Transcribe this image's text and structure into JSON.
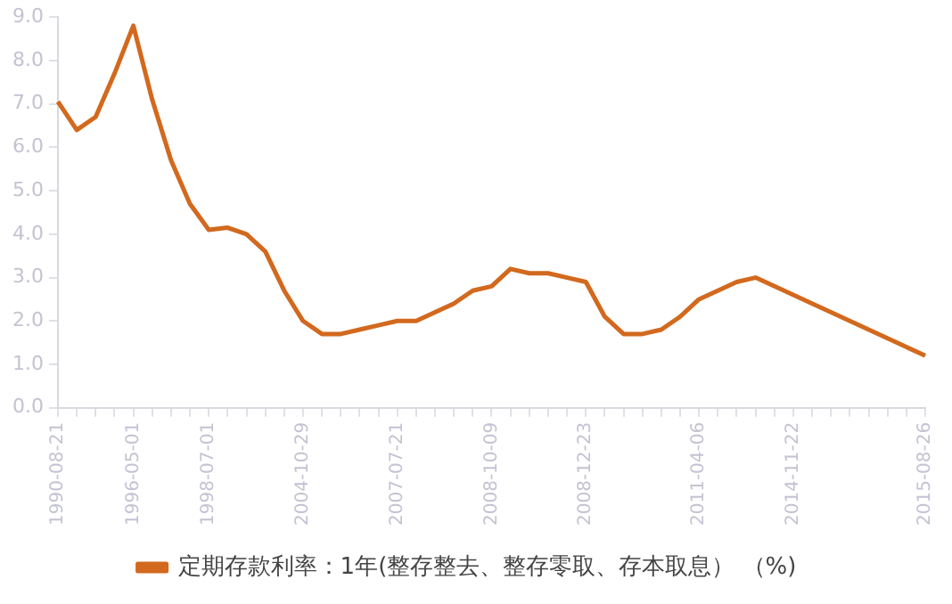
{
  "chart_data": {
    "type": "line",
    "categories": [
      "1990-08-21",
      null,
      null,
      null,
      "1996-05-01",
      null,
      null,
      null,
      "1998-07-01",
      null,
      null,
      null,
      null,
      "2004-10-29",
      null,
      null,
      null,
      null,
      "2007-07-21",
      null,
      null,
      null,
      null,
      "2008-10-09",
      null,
      null,
      null,
      null,
      "2008-12-23",
      null,
      null,
      null,
      null,
      null,
      "2011-04-06",
      null,
      null,
      null,
      null,
      "2014-11-22",
      null,
      null,
      null,
      null,
      null,
      null,
      "2015-08-26"
    ],
    "series": [
      {
        "name": "定期存款利率：1年(整存整去、整存零取、存本取息） （%)",
        "color": "#d2691e",
        "values": [
          7.05,
          6.4,
          6.7,
          7.7,
          8.8,
          7.1,
          5.7,
          4.7,
          4.1,
          4.15,
          4.0,
          3.6,
          2.7,
          2.0,
          1.7,
          1.7,
          1.8,
          1.9,
          2.0,
          2.0,
          2.2,
          2.4,
          2.7,
          2.8,
          3.2,
          3.1,
          3.1,
          3.0,
          2.9,
          2.1,
          1.7,
          1.7,
          1.8,
          2.1,
          2.5,
          2.7,
          2.9,
          3.0,
          2.8,
          2.6,
          2.4,
          2.2,
          2.0,
          1.8,
          1.6,
          1.4,
          1.2
        ]
      }
    ],
    "ylim": [
      0,
      9
    ],
    "yticks": [
      {
        "value": 0,
        "label": "0.0"
      },
      {
        "value": 1,
        "label": "1.0"
      },
      {
        "value": 2,
        "label": "2.0"
      },
      {
        "value": 3,
        "label": "3.0"
      },
      {
        "value": 4,
        "label": "4.0"
      },
      {
        "value": 5,
        "label": "5.0"
      },
      {
        "value": 6,
        "label": "6.0"
      },
      {
        "value": 7,
        "label": "7.0"
      },
      {
        "value": 8,
        "label": "8.0"
      },
      {
        "value": 9,
        "label": "9.0"
      }
    ],
    "grid": false,
    "legend": "bottom",
    "marker": "none",
    "line_style": "solid"
  }
}
